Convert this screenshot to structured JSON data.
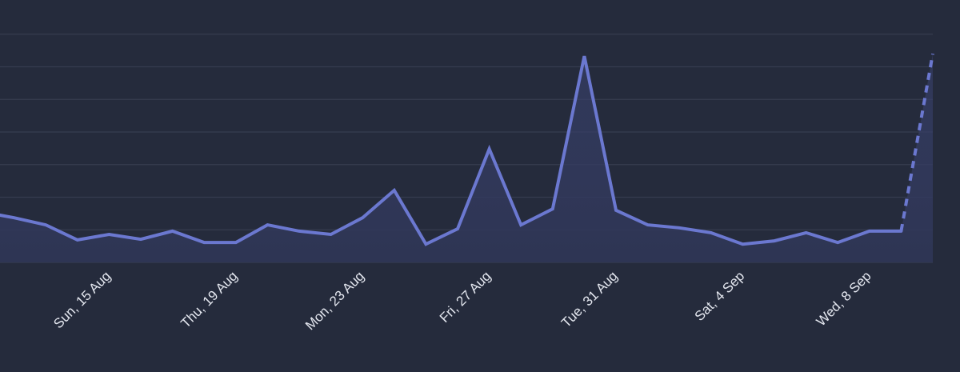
{
  "chart_data": {
    "type": "line",
    "categories": [
      null,
      null,
      null,
      null,
      "Sun, 15 Aug",
      null,
      null,
      null,
      "Thu, 19 Aug",
      null,
      null,
      null,
      "Mon, 23 Aug",
      null,
      null,
      null,
      "Fri, 27 Aug",
      null,
      null,
      null,
      "Tue, 31 Aug",
      null,
      null,
      null,
      "Sat, 4 Sep",
      null,
      null,
      null,
      "Wed, 8 Sep",
      null,
      null
    ],
    "series": [
      {
        "color": "#6b78d0",
        "values": [
          1.55,
          1.37,
          1.15,
          0.69,
          0.86,
          0.71,
          0.96,
          0.61,
          0.61,
          1.15,
          0.96,
          0.86,
          1.37,
          2.21,
          0.56,
          1.03,
          3.48,
          1.15,
          1.64,
          6.33,
          1.6,
          1.15,
          1.06,
          0.91,
          0.56,
          0.66,
          0.91,
          0.61,
          0.96,
          0.96,
          6.4
        ]
      }
    ],
    "ylim": [
      0,
      8
    ],
    "yticks": [
      0,
      1,
      2,
      3,
      4,
      5,
      6,
      7
    ],
    "grid": true,
    "dashed_last_segment": true
  }
}
